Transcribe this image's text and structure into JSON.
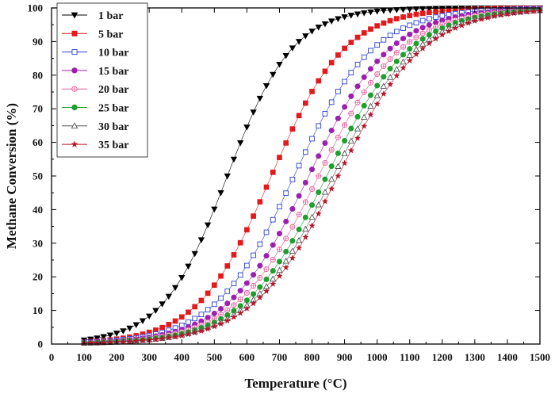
{
  "chart_data": {
    "type": "scatter",
    "title": "",
    "xlabel": "Temperature (°C)",
    "ylabel": "Methane Conversion (%)",
    "xlim": [
      0,
      1500
    ],
    "ylim": [
      0,
      100
    ],
    "xticks": [
      0,
      100,
      200,
      300,
      400,
      500,
      600,
      700,
      800,
      900,
      1000,
      1100,
      1200,
      1300,
      1400,
      1500
    ],
    "yticks": [
      0,
      10,
      20,
      30,
      40,
      50,
      60,
      70,
      80,
      90,
      100
    ],
    "grid": false,
    "legend": "top-left",
    "x_start": 100,
    "x_end": 1500,
    "x_step": 20,
    "series": [
      {
        "name": "1 bar",
        "color": "#000000",
        "marker": "triangle-down",
        "filled": true,
        "midpoint": 540,
        "width": 100
      },
      {
        "name": "5 bar",
        "color": "#e31a1c",
        "marker": "square",
        "filled": true,
        "midpoint": 675,
        "width": 113
      },
      {
        "name": "10 bar",
        "color": "#2b3fd6",
        "marker": "square",
        "filled": false,
        "midpoint": 745,
        "width": 122
      },
      {
        "name": "15 bar",
        "color": "#9c1fb0",
        "marker": "circle",
        "filled": true,
        "midpoint": 790,
        "width": 126
      },
      {
        "name": "20 bar",
        "color": "#ea5a9a",
        "marker": "circle-plus",
        "filled": false,
        "midpoint": 820,
        "width": 128
      },
      {
        "name": "25 bar",
        "color": "#1e9e2c",
        "marker": "circle",
        "filled": true,
        "midpoint": 845,
        "width": 129
      },
      {
        "name": "30 bar",
        "color": "#555555",
        "marker": "triangle-up",
        "filled": false,
        "midpoint": 865,
        "width": 130
      },
      {
        "name": "35 bar",
        "color": "#b5152a",
        "marker": "star",
        "filled": true,
        "midpoint": 880,
        "width": 131
      }
    ]
  }
}
